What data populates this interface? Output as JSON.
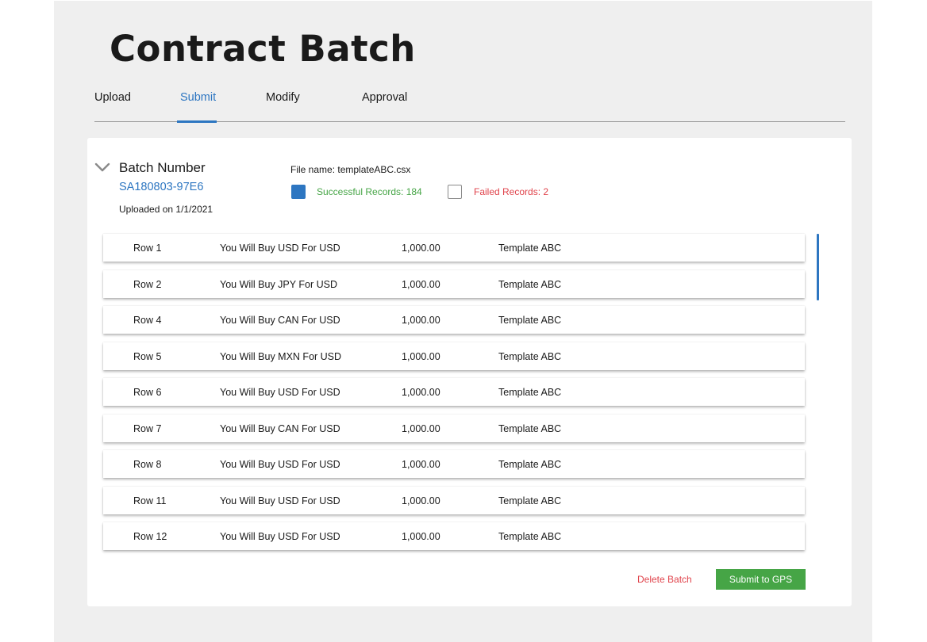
{
  "page": {
    "title": "Contract Batch"
  },
  "tabs": [
    {
      "label": "Upload",
      "active": false
    },
    {
      "label": "Submit",
      "active": true
    },
    {
      "label": "Modify",
      "active": false
    },
    {
      "label": "Approval",
      "active": false
    }
  ],
  "batch": {
    "label": "Batch Number",
    "number": "SA180803-97E6",
    "uploaded": "Uploaded on 1/1/2021",
    "file_name": "File name: templateABC.csx",
    "successful_label": "Successful Records: 184",
    "failed_label": "Failed Records: 2"
  },
  "rows": [
    {
      "row": "Row 1",
      "description": "You Will Buy USD For USD",
      "amount": "1,000.00",
      "template": "Template ABC"
    },
    {
      "row": "Row 2",
      "description": "You Will Buy JPY For USD",
      "amount": "1,000.00",
      "template": "Template ABC"
    },
    {
      "row": "Row 4",
      "description": "You Will Buy CAN For USD",
      "amount": "1,000.00",
      "template": "Template ABC"
    },
    {
      "row": "Row 5",
      "description": "You Will Buy MXN For USD",
      "amount": "1,000.00",
      "template": "Template ABC"
    },
    {
      "row": "Row 6",
      "description": "You Will Buy USD For USD",
      "amount": "1,000.00",
      "template": "Template ABC"
    },
    {
      "row": "Row 7",
      "description": "You Will Buy CAN For USD",
      "amount": "1,000.00",
      "template": "Template ABC"
    },
    {
      "row": "Row 8",
      "description": "You Will Buy USD For USD",
      "amount": "1,000.00",
      "template": "Template ABC"
    },
    {
      "row": "Row 11",
      "description": "You Will Buy USD For USD",
      "amount": "1,000.00",
      "template": "Template ABC"
    },
    {
      "row": "Row 12",
      "description": "You Will Buy USD For USD",
      "amount": "1,000.00",
      "template": "Template ABC"
    }
  ],
  "actions": {
    "delete_label": "Delete Batch",
    "submit_label": "Submit to GPS"
  },
  "icons": {
    "collapse": "chevron-down-icon",
    "successful": "successful-records-swatch",
    "failed": "failed-records-swatch"
  },
  "colors": {
    "accent": "#2d76c1",
    "success": "#46a546",
    "danger": "#e0434b",
    "page_background": "#efefef"
  }
}
